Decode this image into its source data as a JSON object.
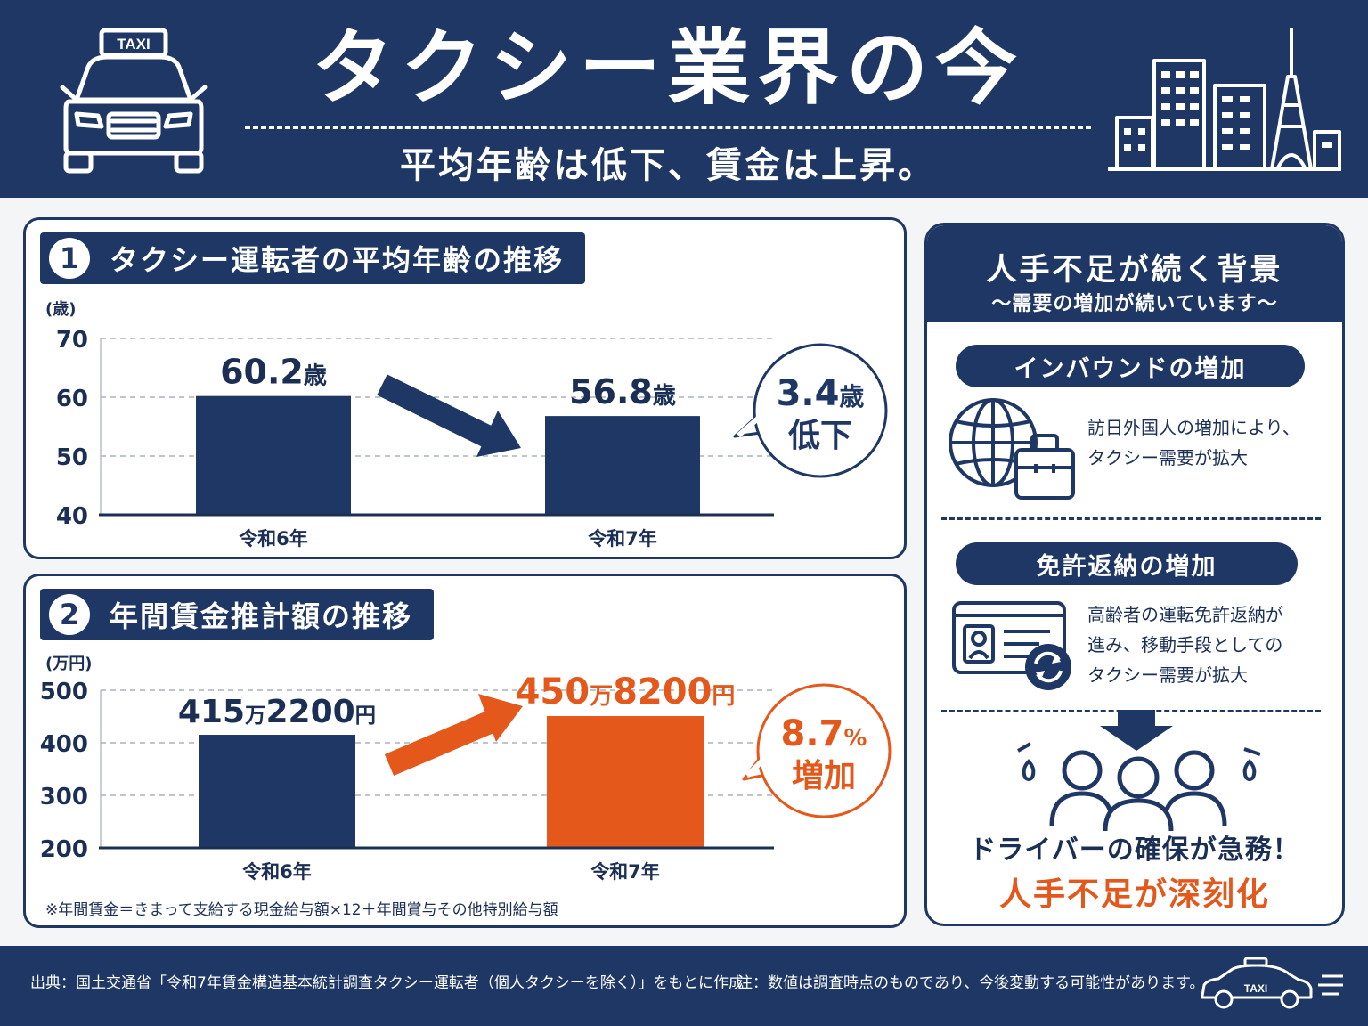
{
  "header": {
    "title": "タクシー業界の今",
    "subtitle": "平均年齢は低下、賃金は上昇。",
    "taxi_sign": "TAXI",
    "icons": [
      "taxi-icon",
      "city-skyline-icon"
    ]
  },
  "age_panel": {
    "number": "1",
    "title": "タクシー運転者の平均年齢の推移",
    "bubble_value": "3.4",
    "bubble_unit": "歳",
    "bubble_text": "低下"
  },
  "wage_panel": {
    "number": "2",
    "title": "年間賃金推計額の推移",
    "bubble_value": "8.7",
    "bubble_unit": "%",
    "bubble_text": "増加",
    "footnote": "※年間賃金＝きまって支給する現金給与額×12＋年間賞与その他特別給与額"
  },
  "chart_data": [
    {
      "type": "bar",
      "title": "タクシー運転者の平均年齢の推移",
      "ylabel": "(歳)",
      "ylim": [
        40,
        70
      ],
      "yticks": [
        70,
        60,
        50,
        40
      ],
      "categories": [
        "令和6年",
        "令和7年"
      ],
      "values": [
        60.2,
        56.8
      ],
      "data_labels": [
        {
          "num": "60.2",
          "unit": "歳"
        },
        {
          "num": "56.8",
          "unit": "歳"
        }
      ],
      "colors": [
        "#1e3764",
        "#1e3764"
      ],
      "grid": true
    },
    {
      "type": "bar",
      "title": "年間賃金推計額の推移",
      "ylabel": "(万円)",
      "ylim": [
        200,
        500
      ],
      "yticks": [
        500,
        400,
        300,
        200
      ],
      "categories": [
        "令和6年",
        "令和7年"
      ],
      "values": [
        415.22,
        450.82
      ],
      "data_labels": [
        {
          "a": "415",
          "b": "万",
          "c": "2200",
          "d": "円"
        },
        {
          "a": "450",
          "b": "万",
          "c": "8200",
          "d": "円"
        }
      ],
      "colors": [
        "#1e3764",
        "#e4581c"
      ],
      "grid": true
    }
  ],
  "background_panel": {
    "title": "人手不足が続く背景",
    "subtitle": "〜需要の増加が続いています〜",
    "reasons": [
      {
        "heading": "インバウンドの増加",
        "lines": [
          "訪日外国人の増加により、",
          "タクシー需要が拡大"
        ],
        "icon": "globe-luggage-icon"
      },
      {
        "heading": "免許返納の増加",
        "lines": [
          "高齢者の運転免許返納が",
          "進み、移動手段としての",
          "タクシー需要が拡大"
        ],
        "icon": "license-card-icon"
      }
    ],
    "conclusion_line1": "ドライバーの確保が急務！",
    "conclusion_line2": "人手不足が深刻化"
  },
  "footer": {
    "source": "出典：国土交通省「令和7年賃金構造基本統計調査タクシー運転者（個人タクシーを除く）」をもとに作成",
    "note": "注：数値は調査時点のものであり、今後変動する可能性があります。",
    "taxi_sign": "TAXI"
  },
  "colors": {
    "navy": "#1e3764",
    "orange": "#e4581c",
    "background": "#f4f5f7"
  }
}
